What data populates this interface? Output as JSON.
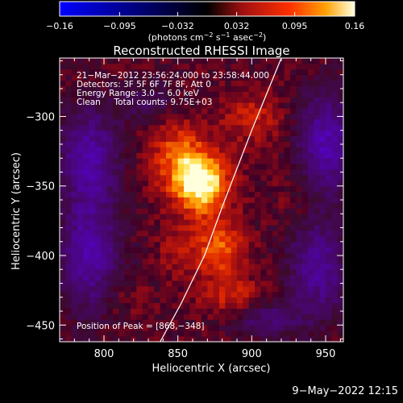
{
  "colorbar": {
    "min": -0.16,
    "max": 0.16,
    "tick_labels": [
      "−0.16",
      "−0.095",
      "−0.032",
      "0.032",
      "0.095",
      "0.16"
    ],
    "tick_values": [
      -0.16,
      -0.095,
      -0.032,
      0.032,
      0.095,
      0.16
    ],
    "unit_label_prefix": "(photons cm",
    "unit_sup1": "−2",
    "unit_mid": " s",
    "unit_sup2": "−1",
    "unit_mid2": " asec",
    "unit_sup3": "−2",
    "unit_suffix": ")",
    "colormap": "fire-negative-blue"
  },
  "chart_data": {
    "type": "heatmap",
    "title": "Reconstructed RHESSI Image",
    "xlabel": "Heliocentric X (arcsec)",
    "ylabel": "Heliocentric Y (arcsec)",
    "xlim": [
      770,
      962
    ],
    "ylim": [
      -462,
      -258
    ],
    "x_ticks": [
      800,
      850,
      900,
      950
    ],
    "x_tick_labels": [
      "800",
      "850",
      "900",
      "950"
    ],
    "y_ticks": [
      -300,
      -350,
      -400,
      -450
    ],
    "y_tick_labels": [
      "−300",
      "−350",
      "−400",
      "−450"
    ],
    "annotations": [
      "21−Mar−2012 23:56:24.000 to 23:58:44.000",
      "Detectors: 3F 5F 6F 7F 8F, Att 0",
      "Energy Range: 3.0 − 6.0 keV",
      "Clean     Total counts: 9.75E+03"
    ],
    "peak_label": "Position of Peak = [868,−348]",
    "peak": [
      868,
      -348
    ],
    "limb_curve": [
      [
        920,
        -258
      ],
      [
        900,
        -310
      ],
      [
        880,
        -365
      ],
      [
        868,
        -400
      ],
      [
        852,
        -435
      ],
      [
        838,
        -462
      ]
    ],
    "sources": [
      {
        "x": 866,
        "y": -348,
        "amp": 0.16,
        "sx": 13,
        "sy": 15
      },
      {
        "x": 850,
        "y": -327,
        "amp": 0.075,
        "sx": 14,
        "sy": 18
      },
      {
        "x": 878,
        "y": -395,
        "amp": 0.09,
        "sx": 12,
        "sy": 15
      },
      {
        "x": 888,
        "y": -430,
        "amp": 0.06,
        "sx": 16,
        "sy": 9
      },
      {
        "x": 900,
        "y": -300,
        "amp": 0.05,
        "sx": 16,
        "sy": 14
      },
      {
        "x": 850,
        "y": -395,
        "amp": 0.035,
        "sx": 10,
        "sy": 14
      },
      {
        "x": 815,
        "y": -430,
        "amp": 0.02,
        "sx": 12,
        "sy": 10
      },
      {
        "x": 930,
        "y": -350,
        "amp": 0.02,
        "sx": 12,
        "sy": 20
      },
      {
        "x": 790,
        "y": -330,
        "amp": -0.11,
        "sx": 14,
        "sy": 25
      },
      {
        "x": 790,
        "y": -400,
        "amp": -0.11,
        "sx": 14,
        "sy": 28
      },
      {
        "x": 950,
        "y": -320,
        "amp": -0.12,
        "sx": 14,
        "sy": 25
      },
      {
        "x": 945,
        "y": -410,
        "amp": -0.1,
        "sx": 14,
        "sy": 25
      },
      {
        "x": 910,
        "y": -445,
        "amp": -0.07,
        "sx": 16,
        "sy": 10
      },
      {
        "x": 830,
        "y": -290,
        "amp": -0.05,
        "sx": 14,
        "sy": 10
      }
    ]
  },
  "timestamp": "9−May−2022 12:15"
}
